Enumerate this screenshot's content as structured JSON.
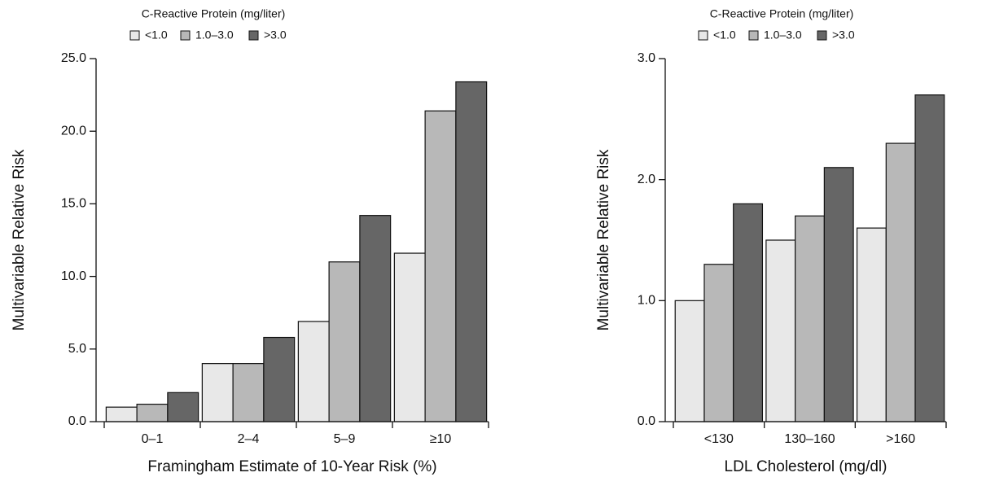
{
  "chart_data": [
    {
      "type": "bar",
      "legend_title": "C-Reactive Protein (mg/liter)",
      "xlabel": "Framingham Estimate of 10-Year Risk (%)",
      "ylabel": "Multivariable Relative Risk",
      "categories": [
        "0–1",
        "2–4",
        "5–9",
        "≥10"
      ],
      "series": [
        {
          "name": "<1.0",
          "color": "#e8e8e8",
          "values": [
            1.0,
            4.0,
            6.9,
            11.6
          ]
        },
        {
          "name": "1.0–3.0",
          "color": "#b8b8b8",
          "values": [
            1.2,
            4.0,
            11.0,
            21.4
          ]
        },
        {
          "name": ">3.0",
          "color": "#666666",
          "values": [
            2.0,
            5.8,
            14.2,
            23.4
          ]
        }
      ],
      "ylim": [
        0,
        25
      ],
      "yticks": [
        {
          "value": 0,
          "label": "0.0"
        },
        {
          "value": 5,
          "label": "5.0"
        },
        {
          "value": 10,
          "label": "10.0"
        },
        {
          "value": 15,
          "label": "15.0"
        },
        {
          "value": 20,
          "label": "20.0"
        },
        {
          "value": 25,
          "label": "25.0"
        }
      ]
    },
    {
      "type": "bar",
      "legend_title": "C-Reactive Protein (mg/liter)",
      "xlabel": "LDL Cholesterol (mg/dl)",
      "ylabel": "Multivariable Relative Risk",
      "categories": [
        "<130",
        "130–160",
        ">160"
      ],
      "series": [
        {
          "name": "<1.0",
          "color": "#e8e8e8",
          "values": [
            1.0,
            1.5,
            1.6
          ]
        },
        {
          "name": "1.0–3.0",
          "color": "#b8b8b8",
          "values": [
            1.3,
            1.7,
            2.3
          ]
        },
        {
          "name": ">3.0",
          "color": "#666666",
          "values": [
            1.8,
            2.1,
            2.7
          ]
        }
      ],
      "ylim": [
        0,
        3
      ],
      "yticks": [
        {
          "value": 0,
          "label": "0.0"
        },
        {
          "value": 1,
          "label": "1.0"
        },
        {
          "value": 2,
          "label": "2.0"
        },
        {
          "value": 3,
          "label": "3.0"
        }
      ]
    }
  ]
}
